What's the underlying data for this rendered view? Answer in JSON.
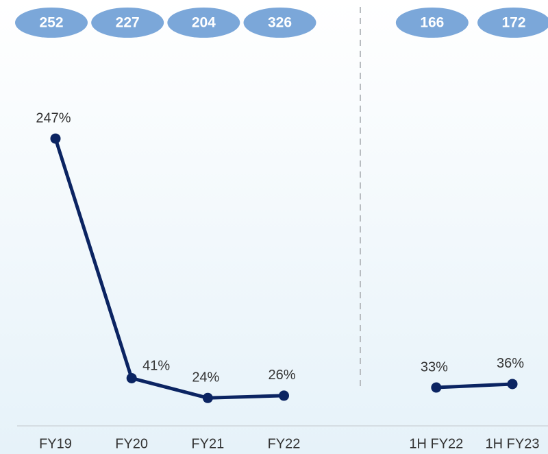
{
  "chart_data": {
    "type": "line",
    "categories": [
      "FY19",
      "FY20",
      "FY21",
      "FY22",
      null,
      "1H FY22",
      "1H FY23"
    ],
    "series": [
      {
        "color": "#0b2462",
        "values": [
          247,
          41,
          24,
          26,
          null,
          33,
          36
        ],
        "value_labels": [
          "247%",
          "41%",
          "24%",
          "26%",
          null,
          "33%",
          "36%"
        ]
      }
    ],
    "bubble_values": [
      252,
      227,
      204,
      326,
      null,
      166,
      172
    ],
    "bubble_color": "#7ba7d9",
    "ylim": [
      0,
      250
    ]
  }
}
